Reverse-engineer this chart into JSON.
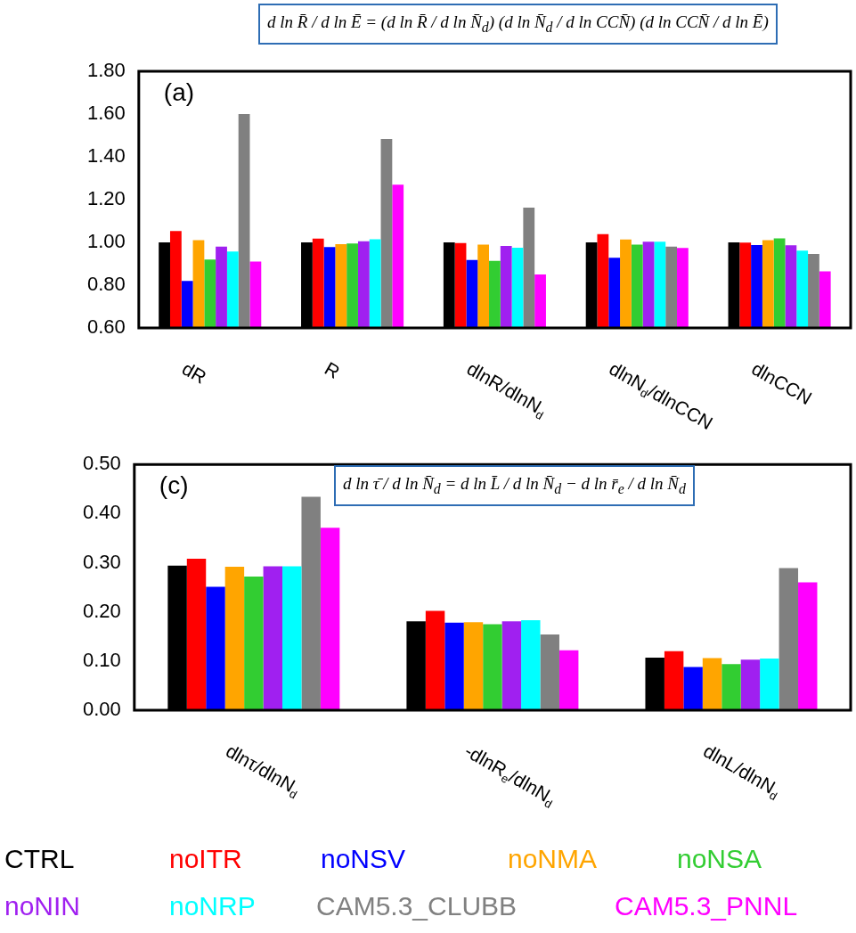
{
  "chart_data": [
    {
      "type": "bar",
      "categories": [
        "dR",
        "R",
        "dlnR/dlnN$_{d}$",
        "dlnN$_{d}$/dlnCCN",
        "dlnCCN"
      ],
      "series": [
        {
          "color": "#000000",
          "values": [
            1.0,
            1.0,
            1.0,
            1.0,
            1.0
          ]
        },
        {
          "color": "#ff0000",
          "values": [
            1.053,
            1.018,
            0.997,
            1.039,
            0.999
          ]
        },
        {
          "color": "#0000ff",
          "values": [
            0.82,
            0.978,
            0.918,
            0.928,
            0.988
          ]
        },
        {
          "color": "#ffa500",
          "values": [
            1.01,
            0.992,
            0.99,
            1.014,
            1.01
          ]
        },
        {
          "color": "#32cd32",
          "values": [
            0.92,
            0.995,
            0.914,
            0.99,
            1.019
          ]
        },
        {
          "color": "#a020f0",
          "values": [
            0.98,
            1.005,
            0.983,
            1.003,
            0.986
          ]
        },
        {
          "color": "#00ffff",
          "values": [
            0.957,
            1.015,
            0.975,
            1.003,
            0.961
          ]
        },
        {
          "color": "#808080",
          "values": [
            1.6,
            1.483,
            1.163,
            0.98,
            0.946
          ]
        },
        {
          "color": "#ff00ff",
          "values": [
            0.91,
            1.27,
            0.85,
            0.974,
            0.865
          ]
        }
      ],
      "ylim": [
        0.6,
        1.8
      ],
      "yticks": [
        {
          "value": 0.6,
          "label": "0.60"
        },
        {
          "value": 0.8,
          "label": "0.80"
        },
        {
          "value": 1.0,
          "label": "1.00"
        },
        {
          "value": 1.2,
          "label": "1.20"
        },
        {
          "value": 1.4,
          "label": "1.40"
        },
        {
          "value": 1.6,
          "label": "1.60"
        },
        {
          "value": 1.8,
          "label": "1.80"
        }
      ],
      "annotations": [
        "(a)",
        "d ln R̄ / d ln Ē = (d ln R̄ / d ln N̄$_{d}$) (d ln N̄$_{d}$ / d ln CCN̄) (d ln CCN̄ / d ln Ē)"
      ],
      "grid": false
    },
    {
      "type": "bar",
      "categories": [
        "dlnτ/dlnN$_{d}$",
        "-dlnR$_{e}$/dlnN$_{d}$",
        "dlnL/dlnN$_{d}$"
      ],
      "series": [
        {
          "name": "CTRL",
          "color": "#000000",
          "values": [
            0.294,
            0.181,
            0.107
          ]
        },
        {
          "name": "noITR",
          "color": "#ff0000",
          "values": [
            0.308,
            0.202,
            0.12
          ]
        },
        {
          "name": "noNSV",
          "color": "#0000ff",
          "values": [
            0.251,
            0.178,
            0.088
          ]
        },
        {
          "name": "noNMA",
          "color": "#ffa500",
          "values": [
            0.292,
            0.179,
            0.106
          ]
        },
        {
          "name": "noNSA",
          "color": "#32cd32",
          "values": [
            0.272,
            0.175,
            0.094
          ]
        },
        {
          "name": "noNIN",
          "color": "#a020f0",
          "values": [
            0.293,
            0.181,
            0.103
          ]
        },
        {
          "name": "noNRP",
          "color": "#00ffff",
          "values": [
            0.293,
            0.183,
            0.105
          ]
        },
        {
          "name": "CAM5.3_CLUBB",
          "color": "#808080",
          "values": [
            0.434,
            0.154,
            0.289
          ]
        },
        {
          "name": "CAM5.3_PNNL",
          "color": "#ff00ff",
          "values": [
            0.371,
            0.122,
            0.26
          ]
        }
      ],
      "ylim": [
        0.0,
        0.5
      ],
      "yticks": [
        {
          "value": 0.0,
          "label": "0.00"
        },
        {
          "value": 0.1,
          "label": "0.10"
        },
        {
          "value": 0.2,
          "label": "0.20"
        },
        {
          "value": 0.3,
          "label": "0.30"
        },
        {
          "value": 0.4,
          "label": "0.40"
        },
        {
          "value": 0.5,
          "label": "0.50"
        }
      ],
      "annotations": [
        "(c)",
        "d ln τ̄ / d ln N̄$_{d}$ = d ln L̄ / d ln N̄$_{d}$ − d ln r̄$_{e}$ / d ln N̄$_{d}$"
      ],
      "grid": false
    }
  ]
}
